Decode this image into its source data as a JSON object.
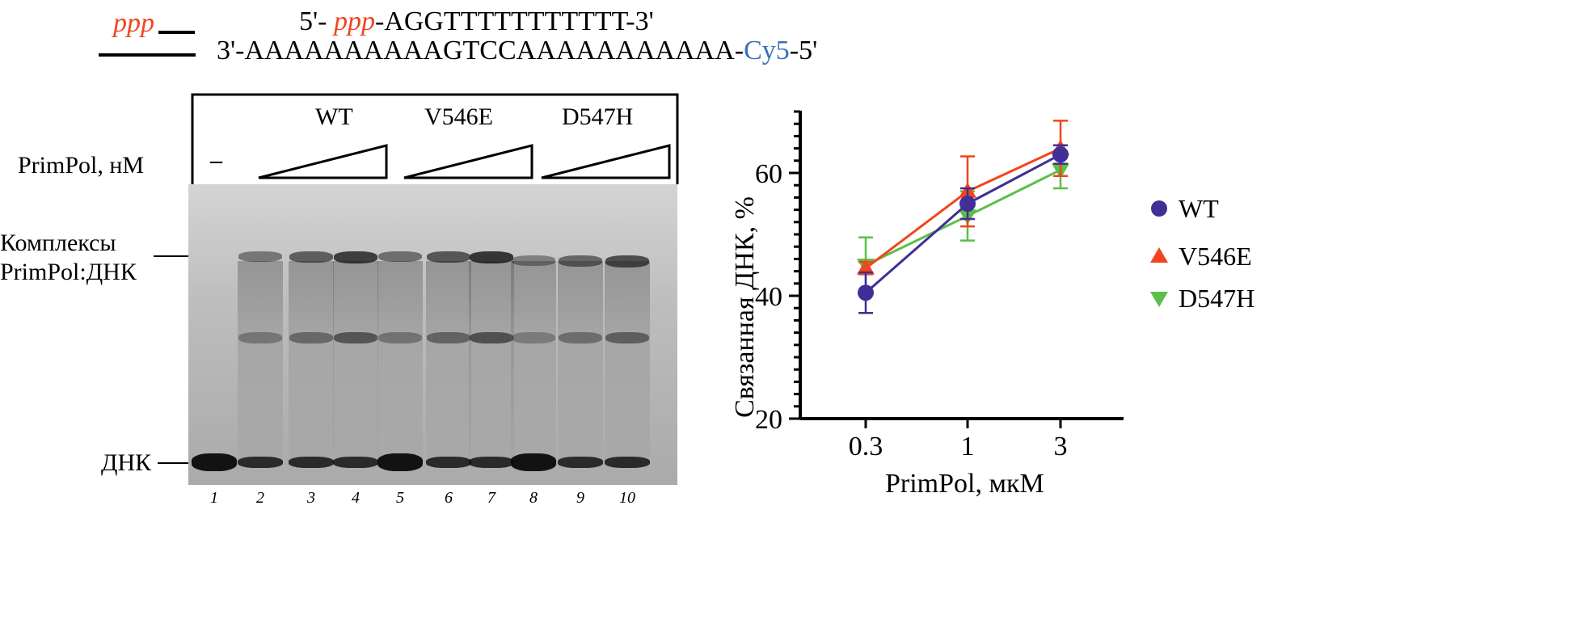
{
  "header": {
    "ppp_label": "ppp",
    "top_prefix": "5'- ",
    "top_ppp": "ppp",
    "top_seq": "-AGGTTTTTTTTTTT-3'",
    "bottom_seq": "3'-AAAAAAAAAAGTCCAAAAAAAAAAA-",
    "bottom_label": "Cy5",
    "bottom_suffix": "-5'"
  },
  "gel": {
    "groups": [
      "WT",
      "V546E",
      "D547H"
    ],
    "row_label": "PrimPol, нМ",
    "control": "–",
    "complex_label_1": "Комплексы",
    "complex_label_2": "PrimPol:ДНК",
    "dna_label": "ДНК",
    "lanes": [
      "1",
      "2",
      "3",
      "4",
      "5",
      "6",
      "7",
      "8",
      "9",
      "10"
    ]
  },
  "colors": {
    "WT": "#3f2f96",
    "V546E": "#f0461e",
    "D547H": "#5cbf47"
  },
  "chart_data": {
    "type": "line",
    "xlabel": "PrimPol, мкМ",
    "ylabel": "Связанная ДНК, %",
    "x": [
      0.3,
      1,
      3
    ],
    "x_tick_labels": [
      "0.3",
      "1",
      "3"
    ],
    "xscale": "log",
    "ylim": [
      20,
      70
    ],
    "y_ticks": [
      20,
      40,
      60
    ],
    "y_tick_labels": [
      "20",
      "40",
      "60"
    ],
    "legend_position": "right",
    "series": [
      {
        "name": "WT",
        "marker": "circle",
        "values": [
          40.5,
          55,
          63
        ],
        "errors": [
          3.3,
          2.5,
          1.5
        ]
      },
      {
        "name": "V546E",
        "marker": "triangle-up",
        "values": [
          44.5,
          57,
          64
        ],
        "errors": [
          1,
          5.7,
          4.5
        ]
      },
      {
        "name": "D547H",
        "marker": "triangle-down",
        "values": [
          45,
          53,
          60.5
        ],
        "errors": [
          4.5,
          4,
          3
        ]
      }
    ]
  }
}
